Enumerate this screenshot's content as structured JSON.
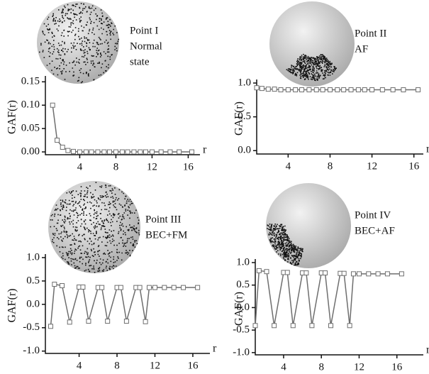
{
  "chart_data": [
    {
      "type": "line",
      "annotation": [
        "Point I",
        "Normal",
        "state"
      ],
      "ylabel": "GAF(r)",
      "xlabel": "r",
      "xlim": [
        0.2,
        17.3
      ],
      "ylim": [
        -0.006,
        0.155
      ],
      "xticks": [
        4,
        8,
        12,
        16
      ],
      "yticks": [
        {
          "value": 0.15,
          "label": "0.15"
        },
        {
          "value": 0.1,
          "label": "0.10"
        },
        {
          "value": 0.05,
          "label": "0.05"
        },
        {
          "value": 0,
          "label": "0.00"
        }
      ],
      "series": [
        {
          "color": "#6e6e6e",
          "x": [
            1,
            1.5,
            2.1,
            2.7,
            3.3,
            4,
            4.7,
            5.3,
            6,
            6.7,
            7.3,
            8,
            8.7,
            9.3,
            10,
            10.7,
            11.3,
            12,
            13,
            14,
            15,
            16.4
          ],
          "values": [
            0.1,
            0.025,
            0.01,
            0.003,
            0.001,
            0,
            0,
            0,
            0,
            0,
            0,
            0,
            0,
            0,
            0,
            0,
            0,
            0,
            0,
            0,
            0,
            0
          ]
        }
      ]
    },
    {
      "type": "line",
      "annotation": [
        "Point II",
        "AF"
      ],
      "ylabel": "GAF(r)",
      "xlabel": "r",
      "xlim": [
        1,
        16.9
      ],
      "ylim": [
        -0.05,
        1.0
      ],
      "xticks": [
        4,
        8,
        12,
        16
      ],
      "yticks": [
        {
          "value": 1.0,
          "label": "1.0"
        },
        0.5,
        {
          "value": 0,
          "label": "0.0"
        }
      ],
      "series": [
        {
          "color": "#6e6e6e",
          "x": [
            1,
            1.5,
            2.1,
            2.7,
            3.3,
            4,
            4.7,
            5.3,
            6,
            6.7,
            7.3,
            8,
            8.7,
            9.3,
            10,
            10.7,
            11.3,
            12,
            13,
            14,
            15,
            16.4
          ],
          "values": [
            0.93,
            0.92,
            0.91,
            0.91,
            0.9,
            0.9,
            0.9,
            0.9,
            0.9,
            0.9,
            0.9,
            0.9,
            0.9,
            0.9,
            0.9,
            0.9,
            0.9,
            0.9,
            0.9,
            0.9,
            0.9,
            0.9
          ]
        }
      ]
    },
    {
      "type": "line",
      "annotation": [
        "Point III",
        "BEC+FM"
      ],
      "ylabel": "GAF(r)",
      "xlabel": "r",
      "xlim": [
        0.44,
        17.8
      ],
      "ylim": [
        -1.05,
        1.0
      ],
      "xticks": [
        4,
        8,
        12,
        16
      ],
      "yticks": [
        {
          "value": 1.0,
          "label": "1.0"
        },
        0.5,
        {
          "value": 0,
          "label": "0.0"
        },
        -0.5,
        {
          "value": -1.0,
          "label": "-1.0"
        }
      ],
      "series": [
        {
          "color": "#6e6e6e",
          "x": [
            1,
            1.4,
            2.2,
            3,
            4,
            4.4,
            5,
            6,
            6.4,
            7,
            8,
            8.4,
            9,
            10,
            10.4,
            11,
            11.4,
            12,
            13,
            14,
            15,
            16.5
          ],
          "values": [
            -0.47,
            0.43,
            0.4,
            -0.38,
            0.37,
            0.37,
            -0.36,
            0.36,
            0.36,
            -0.36,
            0.36,
            0.36,
            -0.36,
            0.36,
            0.36,
            -0.37,
            0.36,
            0.36,
            0.36,
            0.36,
            0.36,
            0.36
          ]
        }
      ]
    },
    {
      "type": "line",
      "annotation": [
        "Point IV",
        "BEC+AF"
      ],
      "ylabel": "GAF(r)",
      "xlabel": "r",
      "xlim": [
        1,
        18.8
      ],
      "ylim": [
        -1.05,
        1.0
      ],
      "xticks": [
        4,
        8,
        12,
        16
      ],
      "yticks": [
        {
          "value": 1.0,
          "label": "1.0"
        },
        0.5,
        {
          "value": 0,
          "label": "0.0"
        },
        -0.5,
        {
          "value": -1.0,
          "label": "-1.0"
        }
      ],
      "series": [
        {
          "color": "#6e6e6e",
          "x": [
            1,
            1.4,
            2.2,
            3,
            4,
            4.4,
            5,
            6,
            6.4,
            7,
            8,
            8.4,
            9,
            10,
            10.4,
            11,
            11.4,
            12,
            13,
            14,
            15,
            16.5
          ],
          "values": [
            -0.4,
            0.82,
            0.8,
            -0.4,
            0.78,
            0.78,
            -0.4,
            0.77,
            0.77,
            -0.4,
            0.77,
            0.77,
            -0.4,
            0.76,
            0.76,
            -0.4,
            0.75,
            0.75,
            0.75,
            0.75,
            0.75,
            0.75
          ]
        }
      ]
    }
  ]
}
